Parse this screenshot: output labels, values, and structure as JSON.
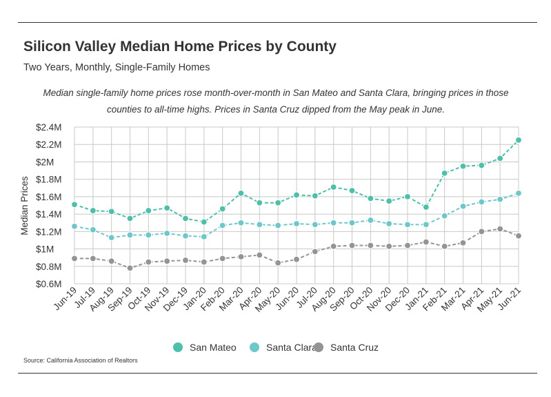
{
  "chart_data": {
    "type": "line",
    "title": "Silicon Valley Median Home Prices by County",
    "subtitle": "Two Years, Monthly, Single-Family Homes",
    "note": "Median single-family home prices rose month-over-month in San Mateo and Santa Clara, bringing prices in those counties to all-time highs. Prices in Santa Cruz dipped from the May peak in June.",
    "ylabel": "Median Prices",
    "xlabel": "",
    "ylim": [
      0.6,
      2.4
    ],
    "yticks": [
      0.6,
      0.8,
      1.0,
      1.2,
      1.4,
      1.6,
      1.8,
      2.0,
      2.2,
      2.4
    ],
    "ytick_labels": [
      "$0.6M",
      "$0.8M",
      "$1M",
      "$1.2M",
      "$1.4M",
      "$1.6M",
      "$1.8M",
      "$2M",
      "$2.2M",
      "$2.4M"
    ],
    "grid": true,
    "legend_position": "bottom-center",
    "categories": [
      "Jun-19",
      "Jul-19",
      "Aug-19",
      "Sep-19",
      "Oct-19",
      "Nov-19",
      "Dec-19",
      "Jan-20",
      "Feb-20",
      "Mar-20",
      "Apr-20",
      "May-20",
      "Jun-20",
      "Jul-20",
      "Aug-20",
      "Sep-20",
      "Oct-20",
      "Nov-20",
      "Dec-20",
      "Jan-21",
      "Feb-21",
      "Mar-21",
      "Apr-21",
      "May-21",
      "Jun-21"
    ],
    "series": [
      {
        "name": "San Mateo",
        "color": "#4dbfaa",
        "values": [
          1.51,
          1.44,
          1.43,
          1.35,
          1.44,
          1.47,
          1.35,
          1.31,
          1.46,
          1.64,
          1.53,
          1.53,
          1.62,
          1.61,
          1.71,
          1.67,
          1.58,
          1.55,
          1.6,
          1.48,
          1.87,
          1.95,
          1.96,
          2.04,
          2.25
        ]
      },
      {
        "name": "Santa Clara",
        "color": "#6ec7cb",
        "values": [
          1.26,
          1.22,
          1.13,
          1.16,
          1.16,
          1.18,
          1.15,
          1.14,
          1.27,
          1.3,
          1.28,
          1.27,
          1.29,
          1.28,
          1.3,
          1.3,
          1.33,
          1.29,
          1.28,
          1.28,
          1.38,
          1.49,
          1.54,
          1.57,
          1.64
        ]
      },
      {
        "name": "Santa Cruz",
        "color": "#949494",
        "values": [
          0.89,
          0.89,
          0.86,
          0.78,
          0.85,
          0.86,
          0.87,
          0.85,
          0.89,
          0.91,
          0.93,
          0.84,
          0.88,
          0.97,
          1.03,
          1.04,
          1.04,
          1.03,
          1.04,
          1.08,
          1.03,
          1.07,
          1.2,
          1.23,
          1.15
        ]
      }
    ],
    "source": "Source:  California Association of Realtors"
  }
}
